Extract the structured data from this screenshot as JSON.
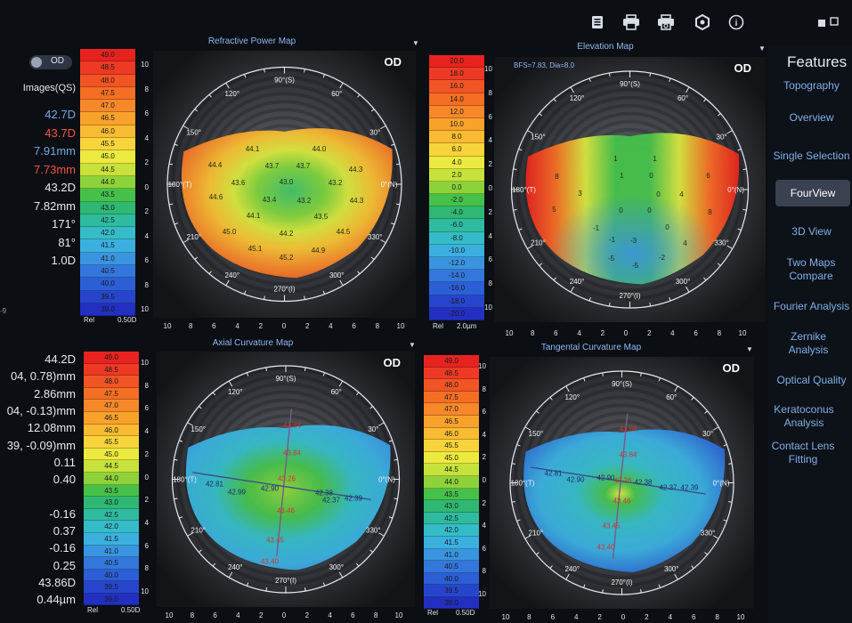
{
  "toolbar": {
    "icons": [
      "document-icon",
      "print-icon",
      "print-preview-icon",
      "settings-icon",
      "info-icon"
    ],
    "info_glyph": "i"
  },
  "sidebar": {
    "title": "Features",
    "items": [
      {
        "label": "Topography",
        "active": false
      },
      {
        "label": "Overview",
        "active": false
      },
      {
        "label": "Single Selection",
        "active": false
      },
      {
        "label": "FourView",
        "active": true
      },
      {
        "label": "3D View",
        "active": false
      },
      {
        "label": "Two Maps Compare",
        "active": false
      },
      {
        "label": "Fourier Analysis",
        "active": false
      },
      {
        "label": "Zernike Analysis",
        "active": false
      },
      {
        "label": "Optical Quality",
        "active": false
      },
      {
        "label": "Keratoconus Analysis",
        "active": false
      },
      {
        "label": "Contact Lens Fitting",
        "active": false
      }
    ]
  },
  "left": {
    "toggle_label": "OD",
    "images_label": "Images(QS)",
    "top_values": [
      {
        "text": "42.7D",
        "color": "blue"
      },
      {
        "text": "43.7D",
        "color": "red"
      },
      {
        "text": "7.91mm",
        "color": "blue"
      },
      {
        "text": "7.73mm",
        "color": "red"
      },
      {
        "text": "43.2D",
        "color": "white"
      },
      {
        "text": "7.82mm",
        "color": "white"
      },
      {
        "text": "171°",
        "color": "white"
      },
      {
        "text": "81°",
        "color": "white"
      },
      {
        "text": "1.0D",
        "color": "white"
      }
    ],
    "bottom_values": [
      "44.2D",
      "04, 0.78)mm",
      "2.86mm",
      "04, -0.13)mm",
      "12.08mm",
      "39, -0.09)mm",
      "0.11",
      "0.40",
      "",
      "-0.16",
      "0.37",
      "-0.16",
      "0.25",
      "43.86D",
      "0.44µm"
    ],
    "stray_glyph": "-9"
  },
  "power_scale": {
    "values": [
      "49.0",
      "48.5",
      "48.0",
      "47.5",
      "47.0",
      "46.5",
      "46.0",
      "45.5",
      "45.0",
      "44.5",
      "44.0",
      "43.5",
      "43.0",
      "42.5",
      "42.0",
      "41.5",
      "41.0",
      "40.5",
      "40.0",
      "39.5",
      "39.0"
    ],
    "colors": [
      "#e8231f",
      "#ee3a24",
      "#f15525",
      "#f46e24",
      "#f6882a",
      "#f8a22c",
      "#f8bb31",
      "#f6d43a",
      "#ecea3f",
      "#c6e23b",
      "#8ed23a",
      "#45c14a",
      "#2fb873",
      "#2fbba0",
      "#35bcc8",
      "#3bb0df",
      "#3a94e0",
      "#3377dc",
      "#2c5ed6",
      "#2745cc",
      "#222fc0"
    ],
    "foot_left": "Rel",
    "foot_right": "0.50D"
  },
  "elevation_scale": {
    "values": [
      "20.0",
      "18.0",
      "16.0",
      "14.0",
      "12.0",
      "10.0",
      "8.0",
      "6.0",
      "4.0",
      "2.0",
      "0.0",
      "-2.0",
      "-4.0",
      "-6.0",
      "-8.0",
      "-10.0",
      "-12.0",
      "-14.0",
      "-16.0",
      "-18.0",
      "-20.0"
    ],
    "foot_left": "Rel",
    "foot_right": "2.0µm"
  },
  "ticks": {
    "y": [
      "10",
      "8",
      "6",
      "4",
      "2",
      "0",
      "2",
      "4",
      "6",
      "8",
      "10"
    ],
    "x": [
      "10",
      "8",
      "6",
      "4",
      "2",
      "0",
      "2",
      "4",
      "6",
      "8",
      "10"
    ]
  },
  "angles": {
    "a90": "90°(S)",
    "a60": "60°",
    "a30": "30°",
    "a0": "0°(N)",
    "a330": "330°",
    "a300": "300°",
    "a270": "270°(I)",
    "a240": "240°",
    "a210": "210°",
    "a180": "180°(T)",
    "a150": "150°",
    "a120": "120°"
  },
  "maps": [
    {
      "title": "Refractive Power Map",
      "eye": "OD",
      "subtitle": "",
      "labels": [
        [
          "44.1",
          -36,
          -37
        ],
        [
          "44.0",
          39,
          -37
        ],
        [
          "44.4",
          -78,
          -19
        ],
        [
          "43.7",
          -14,
          -18
        ],
        [
          "43.7",
          21,
          -18
        ],
        [
          "44.3",
          80,
          -14
        ],
        [
          "43.6",
          -52,
          1
        ],
        [
          "43.0",
          2,
          0
        ],
        [
          "43.2",
          57,
          1
        ],
        [
          "44.6",
          -77,
          17
        ],
        [
          "43.4",
          -17,
          20
        ],
        [
          "43.2",
          22,
          21
        ],
        [
          "44.3",
          81,
          21
        ],
        [
          "44.1",
          -35,
          38
        ],
        [
          "43.5",
          41,
          39
        ],
        [
          "45.0",
          -62,
          56
        ],
        [
          "44.2",
          2,
          58
        ],
        [
          "44.5",
          66,
          56
        ],
        [
          "45.1",
          -33,
          75
        ],
        [
          "44.9",
          38,
          77
        ],
        [
          "45.2",
          2,
          85
        ]
      ]
    },
    {
      "title": "Elevation Map",
      "eye": "OD",
      "subtitle": "BFS=7.83, Dia=8.0",
      "labels": [
        [
          "1",
          -16,
          -32
        ],
        [
          "1",
          28,
          -32
        ],
        [
          "8",
          -82,
          -12
        ],
        [
          "1",
          -9,
          -13
        ],
        [
          "0",
          24,
          -13
        ],
        [
          "6",
          88,
          -13
        ],
        [
          "3",
          -56,
          7
        ],
        [
          "0",
          32,
          8
        ],
        [
          "4",
          58,
          8
        ],
        [
          "5",
          -85,
          25
        ],
        [
          "0",
          -10,
          26
        ],
        [
          "0",
          22,
          26
        ],
        [
          "8",
          90,
          28
        ],
        [
          "-1",
          -38,
          46
        ],
        [
          "0",
          42,
          45
        ],
        [
          "-1",
          -20,
          59
        ],
        [
          "-3",
          4,
          60
        ],
        [
          "4",
          62,
          63
        ],
        [
          "-5",
          -21,
          80
        ],
        [
          "-2",
          36,
          79
        ],
        [
          "-5",
          6,
          88
        ]
      ]
    },
    {
      "title": "Axial Curvature Map",
      "eye": "OD",
      "subtitle": "",
      "labels": [
        [
          "43.84",
          7,
          -58
        ],
        [
          "43.84",
          7,
          -27
        ],
        [
          "43.26",
          1,
          2
        ],
        [
          "42.81",
          -80,
          8
        ],
        [
          "42.99",
          -55,
          17
        ],
        [
          "42.90",
          -18,
          13
        ],
        [
          "42.38",
          43,
          18
        ],
        [
          "42.37",
          51,
          26
        ],
        [
          "42.39",
          76,
          24
        ],
        [
          "43.46",
          0,
          38
        ],
        [
          "43.45",
          -12,
          71
        ],
        [
          "43.40",
          -18,
          95
        ]
      ]
    },
    {
      "title": "Tangental Curvature Map",
      "eye": "OD",
      "subtitle": "",
      "labels": [
        [
          "43.84",
          7,
          -58
        ],
        [
          "43.84",
          7,
          -29
        ],
        [
          "43.26",
          1,
          0
        ],
        [
          "42.81",
          -77,
          -8
        ],
        [
          "42.90",
          -52,
          -1
        ],
        [
          "42.90",
          -18,
          -3
        ],
        [
          "42.38",
          24,
          2
        ],
        [
          "42.37",
          52,
          8
        ],
        [
          "42.39",
          76,
          8
        ],
        [
          "43.46",
          0,
          23
        ],
        [
          "43.45",
          -12,
          51
        ],
        [
          "43.40",
          -18,
          75
        ]
      ]
    }
  ]
}
